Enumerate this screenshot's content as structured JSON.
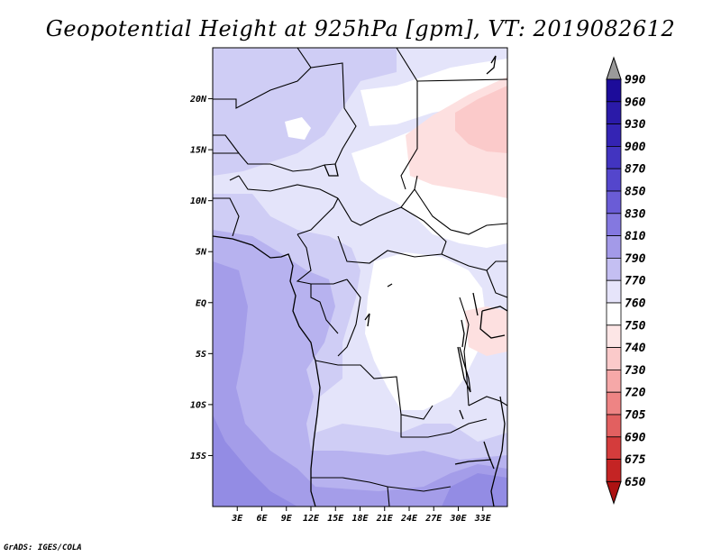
{
  "title": "Geopotential Height at 925hPa [gpm], VT: 2019082612",
  "credit": "GrADS: IGES/COLA",
  "map": {
    "lon_range": [
      0,
      36
    ],
    "lat_range": [
      -20,
      25
    ],
    "lat_ticks": [
      {
        "lat": 20,
        "label": "20N"
      },
      {
        "lat": 15,
        "label": "15N"
      },
      {
        "lat": 10,
        "label": "10N"
      },
      {
        "lat": 5,
        "label": "5N"
      },
      {
        "lat": 0,
        "label": "EQ"
      },
      {
        "lat": -5,
        "label": "5S"
      },
      {
        "lat": -10,
        "label": "10S"
      },
      {
        "lat": -15,
        "label": "15S"
      }
    ],
    "lon_ticks": [
      {
        "lon": 3,
        "label": "3E"
      },
      {
        "lon": 6,
        "label": "6E"
      },
      {
        "lon": 9,
        "label": "9E"
      },
      {
        "lon": 12,
        "label": "12E"
      },
      {
        "lon": 15,
        "label": "15E"
      },
      {
        "lon": 18,
        "label": "18E"
      },
      {
        "lon": 21,
        "label": "21E"
      },
      {
        "lon": 24,
        "label": "24E"
      },
      {
        "lon": 27,
        "label": "27E"
      },
      {
        "lon": 30,
        "label": "30E"
      },
      {
        "lon": 33,
        "label": "33E"
      }
    ]
  },
  "colorbar": {
    "labels": [
      "990",
      "960",
      "930",
      "900",
      "870",
      "850",
      "830",
      "810",
      "790",
      "770",
      "760",
      "750",
      "740",
      "730",
      "720",
      "705",
      "690",
      "675",
      "650"
    ],
    "colors": [
      "#9a9a9a",
      "#1c0c9a",
      "#2a1aa8",
      "#3424b4",
      "#4234c0",
      "#5446cc",
      "#6a5cd6",
      "#8478e0",
      "#a39ae8",
      "#c4bff2",
      "#e6e4fa",
      "#ffffff",
      "#fde6e6",
      "#fbcaca",
      "#f6a8a8",
      "#ee8484",
      "#e26060",
      "#d43c3c",
      "#c42424",
      "#ac1212"
    ]
  },
  "colors": {
    "white": "#ffffff",
    "pale_blue": "#e4e4fa",
    "light_blue": "#cfcdf5",
    "mid_blue": "#b7b2ef",
    "deep_blue": "#a49de9",
    "darker_blue": "#938ce4",
    "pale_pink": "#fde0e0",
    "pink": "#fbcaca"
  }
}
